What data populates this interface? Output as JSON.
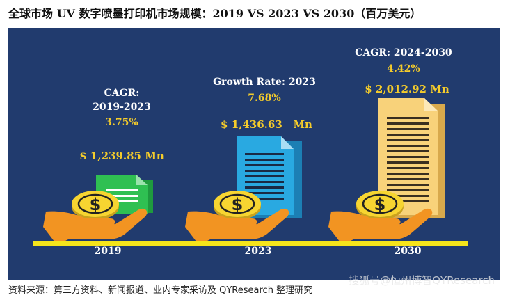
{
  "title": "全球市场 UV 数字喷墨打印机市场规模：2019 VS 2023 VS 2030（百万美元）",
  "footer": "资料来源：第三方资料、新闻报道、业内专家采访及 QYResearch 整理研究",
  "watermark": "搜狐号@恒州博智QYResearch",
  "colors": {
    "background": "#213b6e",
    "accent": "#f5cc2b",
    "green": "#27b24a",
    "blue": "#29a9e1",
    "tan": "#f8d27a",
    "hand": "#f29422"
  },
  "chart_data": {
    "type": "bar",
    "categories": [
      "2019",
      "2023",
      "2030"
    ],
    "values": [
      1239.85,
      1436.63,
      2012.92
    ],
    "value_labels": [
      "$ 1,239.85 Mn",
      "$ 1,436.63   Mn",
      "$ 2,012.92 Mn"
    ],
    "annotations": [
      {
        "label_lines": [
          "CAGR:",
          "2019-2023"
        ],
        "value": "3.75%"
      },
      {
        "label_lines": [
          "Growth Rate: 2023"
        ],
        "value": "7.68%"
      },
      {
        "label_lines": [
          "CAGR: 2024-2030"
        ],
        "value": "4.42%"
      }
    ]
  }
}
